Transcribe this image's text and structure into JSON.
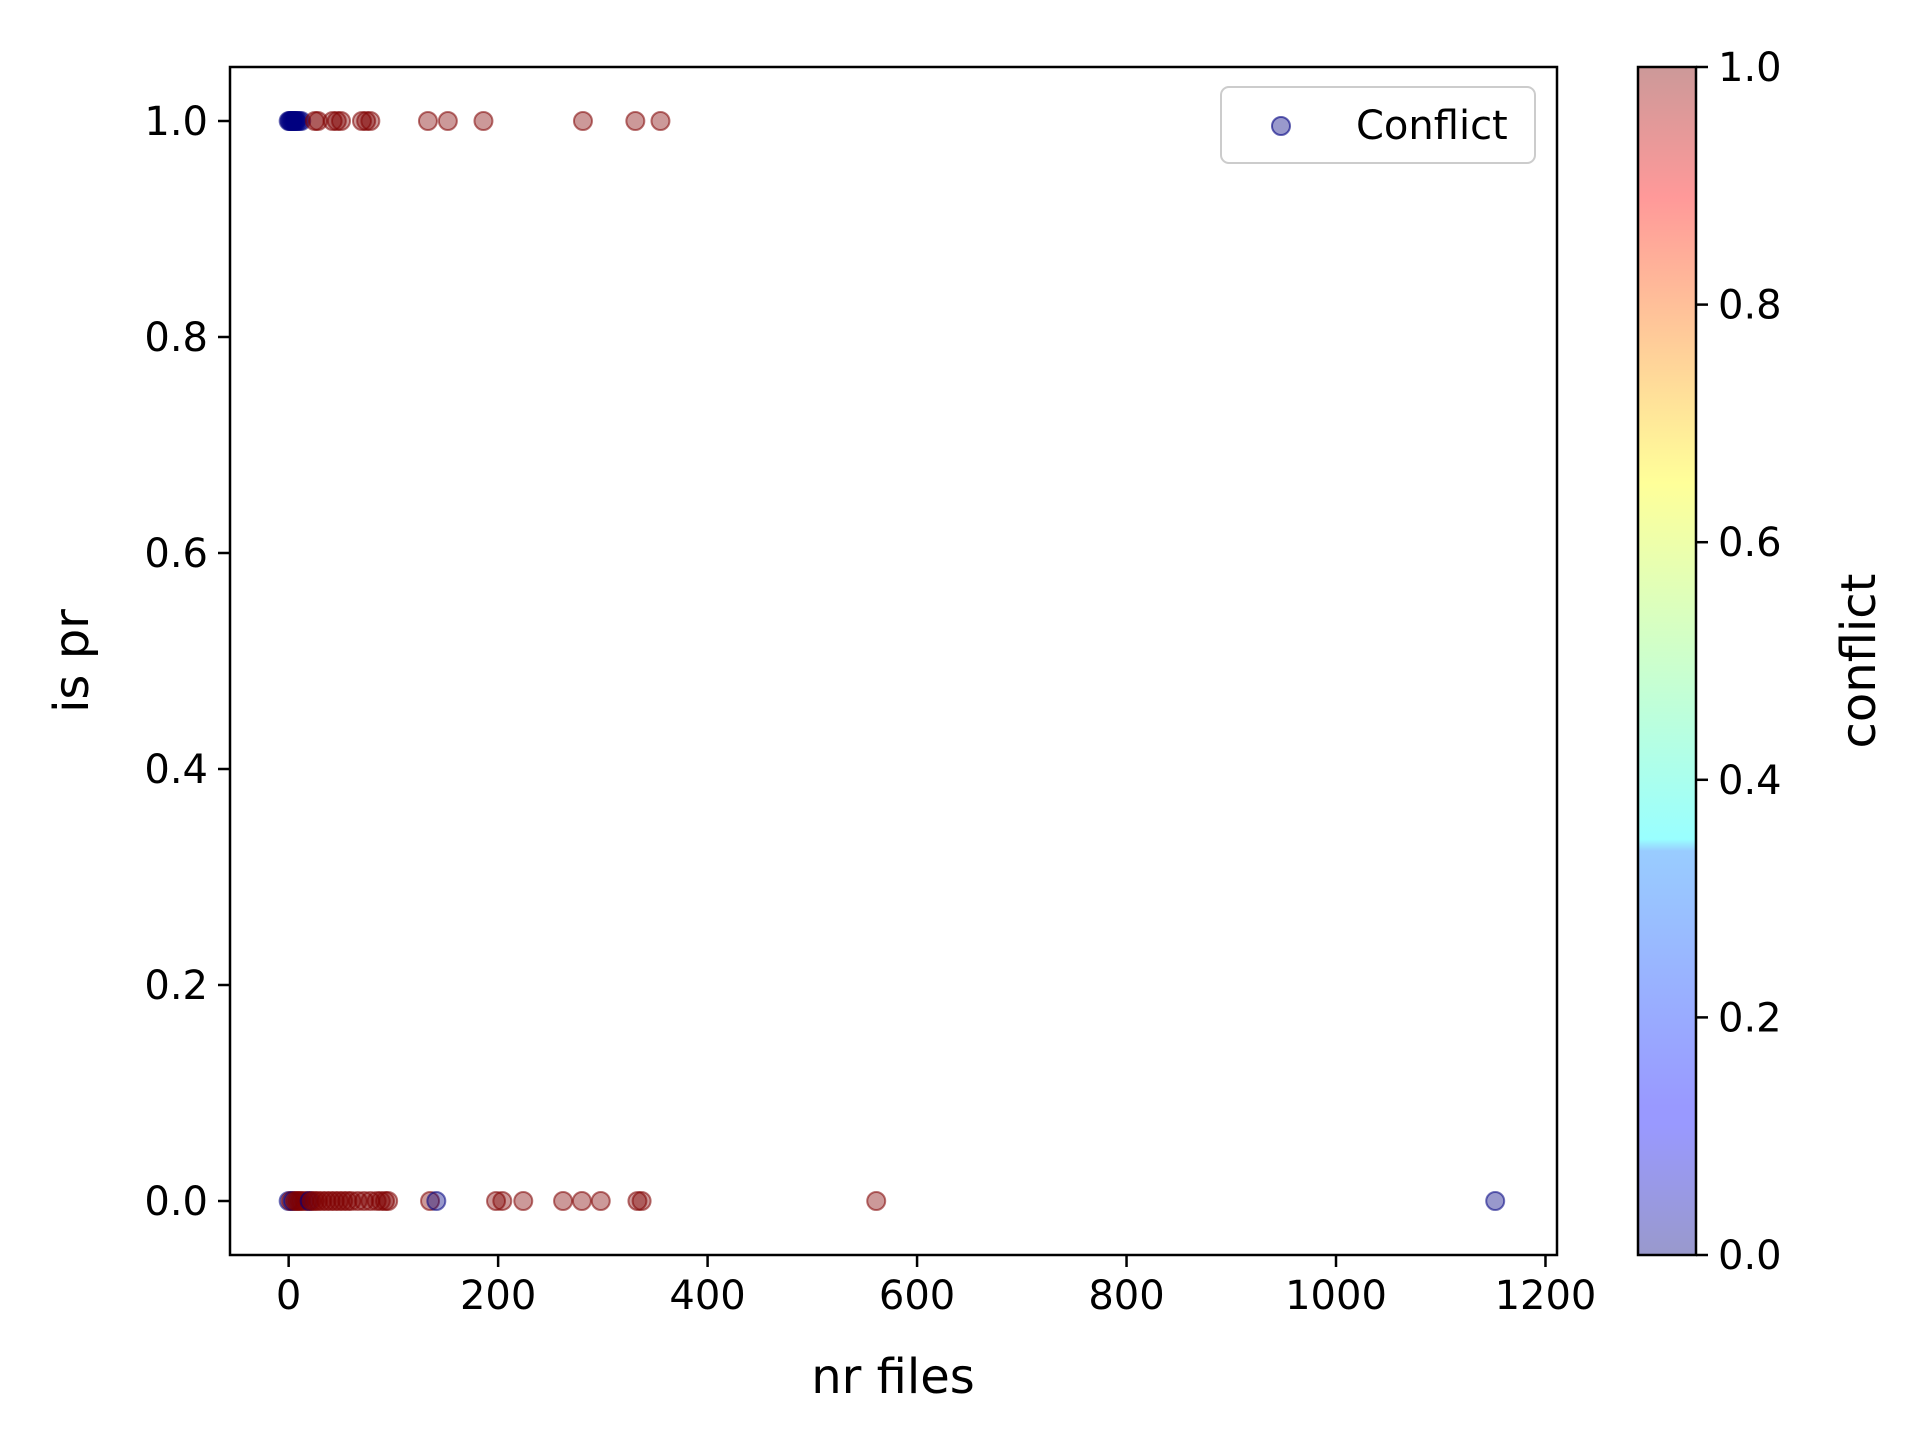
{
  "chart_data": {
    "type": "scatter",
    "title": "",
    "xlabel": "nr files",
    "ylabel": "is pr",
    "xlim": [
      -56,
      1211
    ],
    "ylim": [
      -0.05,
      1.05
    ],
    "xticks": [
      0,
      200,
      400,
      600,
      800,
      1000,
      1200
    ],
    "xtick_labels": [
      "0",
      "200",
      "400",
      "600",
      "800",
      "1000",
      "1200"
    ],
    "yticks": [
      0.0,
      0.2,
      0.4,
      0.6,
      0.8,
      1.0
    ],
    "ytick_labels": [
      "0.0",
      "0.2",
      "0.4",
      "0.6",
      "0.8",
      "1.0"
    ],
    "grid": false,
    "legend": {
      "entries": [
        "Conflict"
      ],
      "position": "top-right"
    },
    "colorbar": {
      "label": "conflict",
      "colormap": "jet",
      "alpha": 0.4,
      "range": [
        0.0,
        1.0
      ],
      "ticks": [
        0.0,
        0.2,
        0.4,
        0.6,
        0.8,
        1.0
      ],
      "tick_labels": [
        "0.0",
        "0.2",
        "0.4",
        "0.6",
        "0.8",
        "1.0"
      ]
    },
    "series": [
      {
        "name": "Conflict",
        "points": [
          {
            "x": 0,
            "y": 1,
            "c": 0
          },
          {
            "x": 1,
            "y": 1,
            "c": 0
          },
          {
            "x": 2,
            "y": 1,
            "c": 0
          },
          {
            "x": 3,
            "y": 1,
            "c": 0
          },
          {
            "x": 4,
            "y": 1,
            "c": 0
          },
          {
            "x": 5,
            "y": 1,
            "c": 0
          },
          {
            "x": 6,
            "y": 1,
            "c": 0
          },
          {
            "x": 7,
            "y": 1,
            "c": 0
          },
          {
            "x": 8,
            "y": 1,
            "c": 0
          },
          {
            "x": 10,
            "y": 1,
            "c": 0
          },
          {
            "x": 12,
            "y": 1,
            "c": 0
          },
          {
            "x": 25,
            "y": 1,
            "c": 1
          },
          {
            "x": 28,
            "y": 1,
            "c": 1
          },
          {
            "x": 42,
            "y": 1,
            "c": 1
          },
          {
            "x": 46,
            "y": 1,
            "c": 1
          },
          {
            "x": 50,
            "y": 1,
            "c": 1
          },
          {
            "x": 70,
            "y": 1,
            "c": 1
          },
          {
            "x": 74,
            "y": 1,
            "c": 1
          },
          {
            "x": 78,
            "y": 1,
            "c": 1
          },
          {
            "x": 133,
            "y": 1,
            "c": 1
          },
          {
            "x": 152,
            "y": 1,
            "c": 1
          },
          {
            "x": 186,
            "y": 1,
            "c": 1
          },
          {
            "x": 281,
            "y": 1,
            "c": 1
          },
          {
            "x": 331,
            "y": 1,
            "c": 1
          },
          {
            "x": 355,
            "y": 1,
            "c": 1
          },
          {
            "x": 0,
            "y": 0,
            "c": 0
          },
          {
            "x": 2,
            "y": 0,
            "c": 1
          },
          {
            "x": 4,
            "y": 0,
            "c": 0
          },
          {
            "x": 6,
            "y": 0,
            "c": 1
          },
          {
            "x": 8,
            "y": 0,
            "c": 1
          },
          {
            "x": 10,
            "y": 0,
            "c": 1
          },
          {
            "x": 12,
            "y": 0,
            "c": 1
          },
          {
            "x": 15,
            "y": 0,
            "c": 1
          },
          {
            "x": 18,
            "y": 0,
            "c": 1
          },
          {
            "x": 20,
            "y": 0,
            "c": 0
          },
          {
            "x": 22,
            "y": 0,
            "c": 1
          },
          {
            "x": 25,
            "y": 0,
            "c": 1
          },
          {
            "x": 28,
            "y": 0,
            "c": 1
          },
          {
            "x": 32,
            "y": 0,
            "c": 1
          },
          {
            "x": 36,
            "y": 0,
            "c": 1
          },
          {
            "x": 40,
            "y": 0,
            "c": 1
          },
          {
            "x": 44,
            "y": 0,
            "c": 1
          },
          {
            "x": 48,
            "y": 0,
            "c": 1
          },
          {
            "x": 52,
            "y": 0,
            "c": 1
          },
          {
            "x": 56,
            "y": 0,
            "c": 1
          },
          {
            "x": 60,
            "y": 0,
            "c": 1
          },
          {
            "x": 66,
            "y": 0,
            "c": 1
          },
          {
            "x": 72,
            "y": 0,
            "c": 1
          },
          {
            "x": 78,
            "y": 0,
            "c": 1
          },
          {
            "x": 84,
            "y": 0,
            "c": 1
          },
          {
            "x": 88,
            "y": 0,
            "c": 1
          },
          {
            "x": 92,
            "y": 0,
            "c": 1
          },
          {
            "x": 95,
            "y": 0,
            "c": 1
          },
          {
            "x": 135,
            "y": 0,
            "c": 1
          },
          {
            "x": 141,
            "y": 0,
            "c": 0
          },
          {
            "x": 198,
            "y": 0,
            "c": 1
          },
          {
            "x": 204,
            "y": 0,
            "c": 1
          },
          {
            "x": 224,
            "y": 0,
            "c": 1
          },
          {
            "x": 262,
            "y": 0,
            "c": 1
          },
          {
            "x": 280,
            "y": 0,
            "c": 1
          },
          {
            "x": 298,
            "y": 0,
            "c": 1
          },
          {
            "x": 333,
            "y": 0,
            "c": 1
          },
          {
            "x": 337,
            "y": 0,
            "c": 1
          },
          {
            "x": 561,
            "y": 0,
            "c": 1
          },
          {
            "x": 1152,
            "y": 0,
            "c": 0
          }
        ]
      }
    ]
  }
}
